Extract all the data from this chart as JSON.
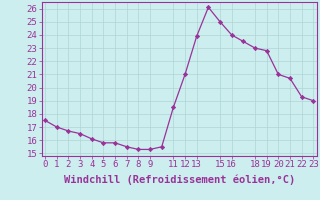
{
  "x": [
    0,
    1,
    2,
    3,
    4,
    5,
    6,
    7,
    8,
    9,
    10,
    11,
    12,
    13,
    14,
    15,
    16,
    17,
    18,
    19,
    20,
    21,
    22,
    23
  ],
  "y": [
    17.5,
    17.0,
    16.7,
    16.5,
    16.1,
    15.8,
    15.8,
    15.5,
    15.3,
    15.3,
    15.5,
    18.5,
    21.0,
    23.9,
    26.1,
    25.0,
    24.0,
    23.5,
    23.0,
    22.8,
    21.0,
    20.7,
    19.3,
    19.0
  ],
  "xticks": [
    0,
    1,
    2,
    3,
    4,
    5,
    6,
    7,
    8,
    9,
    11,
    12,
    13,
    15,
    16,
    18,
    19,
    20,
    21,
    22,
    23
  ],
  "xtick_labels": [
    "0",
    "1",
    "2",
    "3",
    "4",
    "5",
    "6",
    "7",
    "8",
    "9",
    "11",
    "12",
    "13",
    "15",
    "16",
    "18",
    "19",
    "20",
    "21",
    "22",
    "23"
  ],
  "yticks": [
    15,
    16,
    17,
    18,
    19,
    20,
    21,
    22,
    23,
    24,
    25,
    26
  ],
  "ylim": [
    14.8,
    26.5
  ],
  "xlim": [
    -0.3,
    23.3
  ],
  "xlabel": "Windchill (Refroidissement éolien,°C)",
  "line_color": "#993399",
  "marker_color": "#993399",
  "bg_color": "#cceeee",
  "grid_color": "#b0d4d4",
  "axis_color": "#993399",
  "tick_color": "#993399",
  "xlabel_color": "#993399",
  "tick_fontsize": 6.5,
  "xlabel_fontsize": 7.5
}
